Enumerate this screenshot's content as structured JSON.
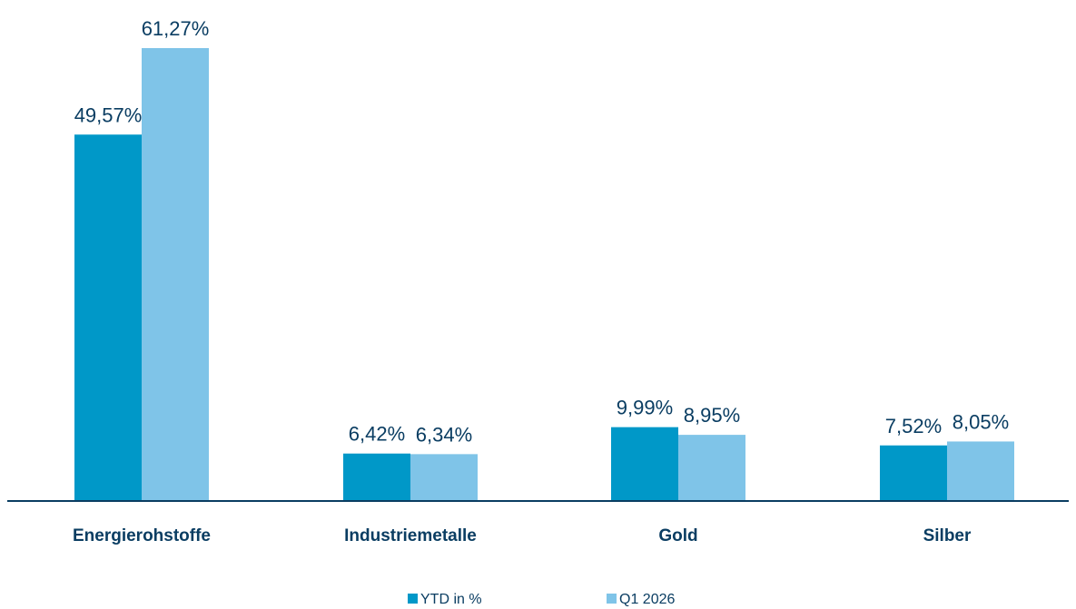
{
  "chart_data": {
    "type": "bar",
    "title": "",
    "xlabel": "",
    "ylabel": "",
    "categories": [
      "Energierohstoffe",
      "Industriemetalle",
      "Gold",
      "Silber"
    ],
    "series": [
      {
        "name": "YTD in %",
        "color": "#0098c8",
        "values": [
          49.57,
          6.42,
          9.99,
          7.52
        ],
        "labels": [
          "49,57%",
          "6,42%",
          "9,99%",
          "7,52%"
        ]
      },
      {
        "name": "Q1 2026",
        "color": "#7fc4e8",
        "values": [
          61.27,
          6.34,
          8.95,
          8.05
        ],
        "labels": [
          "61,27%",
          "6,34%",
          "8,95%",
          "8,05%"
        ]
      }
    ],
    "ylim": [
      0,
      61.27
    ],
    "grid": false,
    "legend": "bottom",
    "axis_color": "#0a3d62"
  }
}
